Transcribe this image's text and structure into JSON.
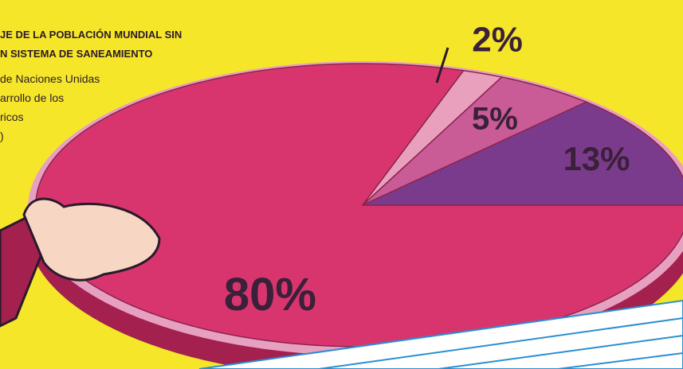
{
  "chart_data": {
    "type": "pie",
    "title_lines": [
      "JE DE  LA POBLACIÓN MUNDIAL SIN",
      "N SISTEMA DE SANEAMIENTO"
    ],
    "source_lines": [
      "de Naciones Unidas",
      "arrollo de los",
      "ricos",
      ")"
    ],
    "values": [
      80,
      2,
      5,
      13
    ],
    "value_labels": [
      "80%",
      "2%",
      "5%",
      "13%"
    ],
    "colors": [
      "#d8356f",
      "#e9a0bd",
      "#c95b97",
      "#7b3b8d"
    ]
  }
}
